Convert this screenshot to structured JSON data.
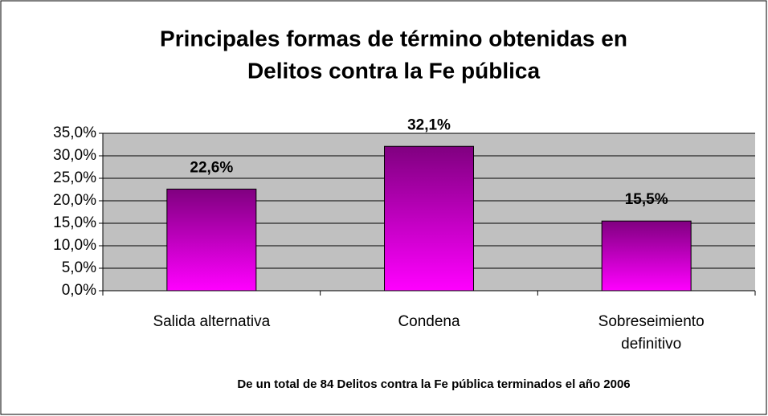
{
  "chart_data": {
    "type": "bar",
    "title": [
      "Principales formas de término obtenidas en",
      "Delitos contra la Fe pública"
    ],
    "categories": [
      "Salida alternativa",
      "Condena",
      "Sobreseimiento definitivo"
    ],
    "values": [
      22.6,
      32.1,
      15.5
    ],
    "value_labels": [
      "22,6%",
      "32,1%",
      "15,5%"
    ],
    "color": [
      "#800080",
      "#ff00ff"
    ],
    "ylim": [
      0,
      35
    ],
    "yticks": [
      {
        "value": 0,
        "label": "0,0%"
      },
      {
        "value": 5,
        "label": "5,0%"
      },
      {
        "value": 10,
        "label": "10,0%"
      },
      {
        "value": 15,
        "label": "15,0%"
      },
      {
        "value": 20,
        "label": "20,0%"
      },
      {
        "value": 25,
        "label": "25,0%"
      },
      {
        "value": 30,
        "label": "30,0%"
      },
      {
        "value": 35,
        "label": "35,0%"
      }
    ],
    "grid": true,
    "annotation": "De un total de 84 Delitos contra la Fe pública terminados el año 2006"
  }
}
